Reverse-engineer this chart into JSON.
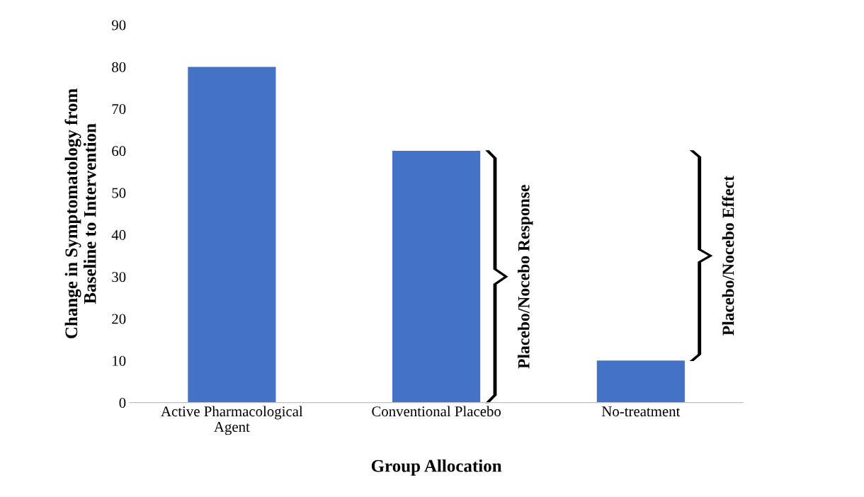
{
  "chart_data": {
    "type": "bar",
    "categories": [
      "Active Pharmacological\nAgent",
      "Conventional Placebo",
      "No-treatment"
    ],
    "values": [
      80,
      60,
      10
    ],
    "color": "#4472c4",
    "xlabel": "Group Allocation",
    "ylabel": "Change in Symptomatology from\nBaseline to Intervention",
    "ylim": [
      0,
      90
    ],
    "yticks": [
      0,
      10,
      20,
      30,
      40,
      50,
      60,
      70,
      80,
      90
    ],
    "grid": false,
    "annotations": [
      "Placebo/Nocebo Response",
      "Placebo/Nocebo Effect"
    ]
  }
}
